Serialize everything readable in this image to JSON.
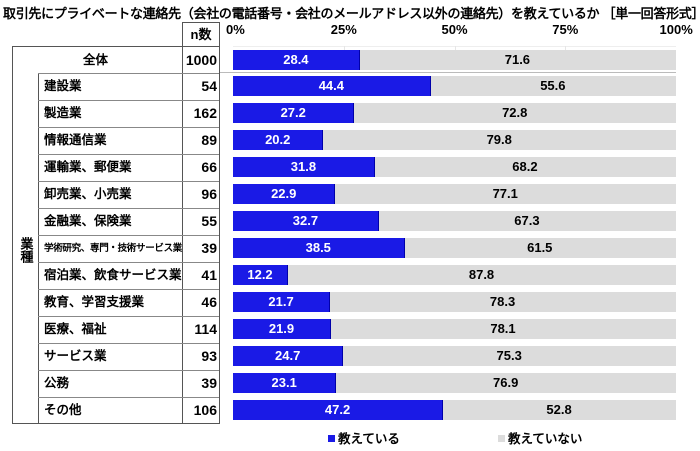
{
  "title": "取引先にプライベートな連絡先（会社の電話番号・会社のメールアドレス以外の連絡先）を教えているか ［単一回答形式］",
  "table": {
    "n_header": "n数",
    "category_label": "業種",
    "total_label": "全体"
  },
  "legend": [
    {
      "label": "教えている",
      "color": "#1a1ae6"
    },
    {
      "label": "教えていない",
      "color": "#dcdcdc"
    }
  ],
  "colors": {
    "yes": "#1a1ae6",
    "no": "#dcdcdc"
  },
  "chart_data": {
    "type": "bar",
    "orientation": "horizontal",
    "stacked": "100%",
    "title": "取引先にプライベートな連絡先（会社の電話番号・会社のメールアドレス以外の連絡先）を教えているか ［単一回答形式］",
    "xlabel": "",
    "ylabel": "業種",
    "xlim": [
      0,
      100
    ],
    "x_ticks": [
      "0%",
      "25%",
      "50%",
      "75%",
      "100%"
    ],
    "legend_position": "bottom",
    "categories": [
      "全体",
      "建設業",
      "製造業",
      "情報通信業",
      "運輸業、郵便業",
      "卸売業、小売業",
      "金融業、保険業",
      "学術研究、専門・技術サービス業",
      "宿泊業、飲食サービス業",
      "教育、学習支援業",
      "医療、福祉",
      "サービス業",
      "公務",
      "その他"
    ],
    "n": [
      1000,
      54,
      162,
      89,
      66,
      96,
      55,
      39,
      41,
      46,
      114,
      93,
      39,
      106
    ],
    "series": [
      {
        "name": "教えている",
        "values": [
          28.4,
          44.4,
          27.2,
          20.2,
          31.8,
          22.9,
          32.7,
          38.5,
          12.2,
          21.7,
          21.9,
          24.7,
          23.1,
          47.2
        ]
      },
      {
        "name": "教えていない",
        "values": [
          71.6,
          55.6,
          72.8,
          79.8,
          68.2,
          77.1,
          67.3,
          61.5,
          87.8,
          78.3,
          78.1,
          75.3,
          76.9,
          52.8
        ]
      }
    ]
  }
}
